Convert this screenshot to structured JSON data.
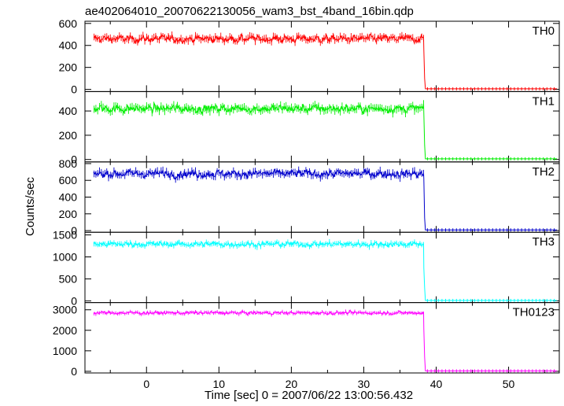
{
  "chart_data": {
    "type": "line",
    "title": "ae402064010_20070622130056_wam3_bst_4band_16bin.qdp",
    "xlabel": "Time [sec] 0 = 2007/06/22 13:00:56.432",
    "ylabel": "Counts/sec",
    "xlim": [
      -8.5,
      57
    ],
    "x_ticks": [
      0,
      10,
      20,
      30,
      40,
      50
    ],
    "x_tick_labels": [
      "0",
      "10",
      "20",
      "30",
      "40",
      "50"
    ],
    "drop_time": 38.3,
    "panels": [
      {
        "name": "TH0",
        "color": "#ff0000",
        "ylim": [
          -20,
          620
        ],
        "y_ticks": [
          0,
          200,
          400,
          600
        ],
        "y_tick_labels": [
          "0",
          "200",
          "400",
          "600"
        ],
        "level": 460,
        "noise": 40,
        "error_bar": 30,
        "transition": [
          360,
          100
        ],
        "post_level": 5,
        "start_x": -7.3
      },
      {
        "name": "TH1",
        "color": "#00ee00",
        "ylim": [
          -20,
          560
        ],
        "y_ticks": [
          0,
          200,
          400
        ],
        "y_tick_labels": [
          "0",
          "200",
          "400"
        ],
        "level": 420,
        "noise": 40,
        "error_bar": 30,
        "transition": [
          380,
          120
        ],
        "post_level": 5,
        "start_x": -7.3
      },
      {
        "name": "TH2",
        "color": "#0000cc",
        "ylim": [
          -20,
          820
        ],
        "y_ticks": [
          0,
          200,
          400,
          600,
          800
        ],
        "y_tick_labels": [
          "0",
          "200",
          "400",
          "600",
          "800"
        ],
        "level": 680,
        "noise": 55,
        "error_bar": 40,
        "transition": [
          620,
          150
        ],
        "post_level": 8,
        "start_x": -7.3
      },
      {
        "name": "TH3",
        "color": "#00ffff",
        "ylim": [
          -40,
          1560
        ],
        "y_ticks": [
          0,
          500,
          1000,
          1500
        ],
        "y_tick_labels": [
          "0",
          "500",
          "1000",
          "1500"
        ],
        "level": 1290,
        "noise": 70,
        "error_bar": 55,
        "transition": [
          750,
          300
        ],
        "post_level": 8,
        "start_x": -7.3
      },
      {
        "name": "TH0123",
        "color": "#ff00ff",
        "ylim": [
          -80,
          3350
        ],
        "y_ticks": [
          0,
          1000,
          2000,
          3000
        ],
        "y_tick_labels": [
          "0",
          "1000",
          "2000",
          "3000"
        ],
        "level": 2850,
        "noise": 90,
        "error_bar": 80,
        "transition": [
          2050,
          700
        ],
        "post_level": 20,
        "start_x": -7.3
      }
    ]
  }
}
